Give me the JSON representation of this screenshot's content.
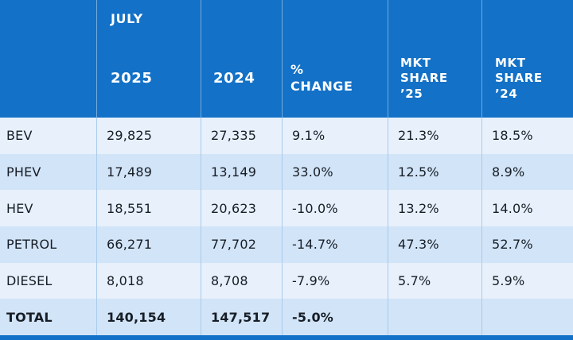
{
  "colors": {
    "header_blue": "#1371c7",
    "row_light": "#e7f0fb",
    "row_dark": "#d2e4f7",
    "body_divider": "#a9cbec",
    "header_text": "#ffffff",
    "body_text": "#161d26"
  },
  "table": {
    "header": {
      "period_label": "JULY",
      "col_fuel": "",
      "col_2025": "2025",
      "col_2024": "2024",
      "col_pct_change": "%\nCHANGE",
      "col_mkt_share_25": "MKT\nSHARE\n’25",
      "col_mkt_share_24": "MKT\nSHARE\n’24"
    },
    "rows": [
      {
        "label": "BEV",
        "jul_2025": "29,825",
        "jul_2024": "27,335",
        "pct_change": "9.1%",
        "mkt_share_25": "21.3%",
        "mkt_share_24": "18.5%"
      },
      {
        "label": "PHEV",
        "jul_2025": "17,489",
        "jul_2024": "13,149",
        "pct_change": "33.0%",
        "mkt_share_25": "12.5%",
        "mkt_share_24": "8.9%"
      },
      {
        "label": "HEV",
        "jul_2025": "18,551",
        "jul_2024": "20,623",
        "pct_change": "-10.0%",
        "mkt_share_25": "13.2%",
        "mkt_share_24": "14.0%"
      },
      {
        "label": "PETROL",
        "jul_2025": "66,271",
        "jul_2024": "77,702",
        "pct_change": "-14.7%",
        "mkt_share_25": "47.3%",
        "mkt_share_24": "52.7%"
      },
      {
        "label": "DIESEL",
        "jul_2025": "8,018",
        "jul_2024": "8,708",
        "pct_change": "-7.9%",
        "mkt_share_25": "5.7%",
        "mkt_share_24": "5.9%"
      },
      {
        "label": "TOTAL",
        "jul_2025": "140,154",
        "jul_2024": "147,517",
        "pct_change": "-5.0%",
        "mkt_share_25": "",
        "mkt_share_24": ""
      }
    ]
  },
  "chart_data": {
    "type": "table",
    "period_label": "JULY",
    "columns": [
      "",
      "2025",
      "2024",
      "% CHANGE",
      "MKT SHARE ’25",
      "MKT SHARE ’24"
    ],
    "rows": [
      [
        "BEV",
        29825,
        27335,
        9.1,
        21.3,
        18.5
      ],
      [
        "PHEV",
        17489,
        13149,
        33.0,
        12.5,
        8.9
      ],
      [
        "HEV",
        18551,
        20623,
        -10.0,
        13.2,
        14.0
      ],
      [
        "PETROL",
        66271,
        77702,
        -14.7,
        47.3,
        52.7
      ],
      [
        "DIESEL",
        8018,
        8708,
        -7.9,
        5.7,
        5.9
      ],
      [
        "TOTAL",
        140154,
        147517,
        -5.0,
        null,
        null
      ]
    ]
  }
}
